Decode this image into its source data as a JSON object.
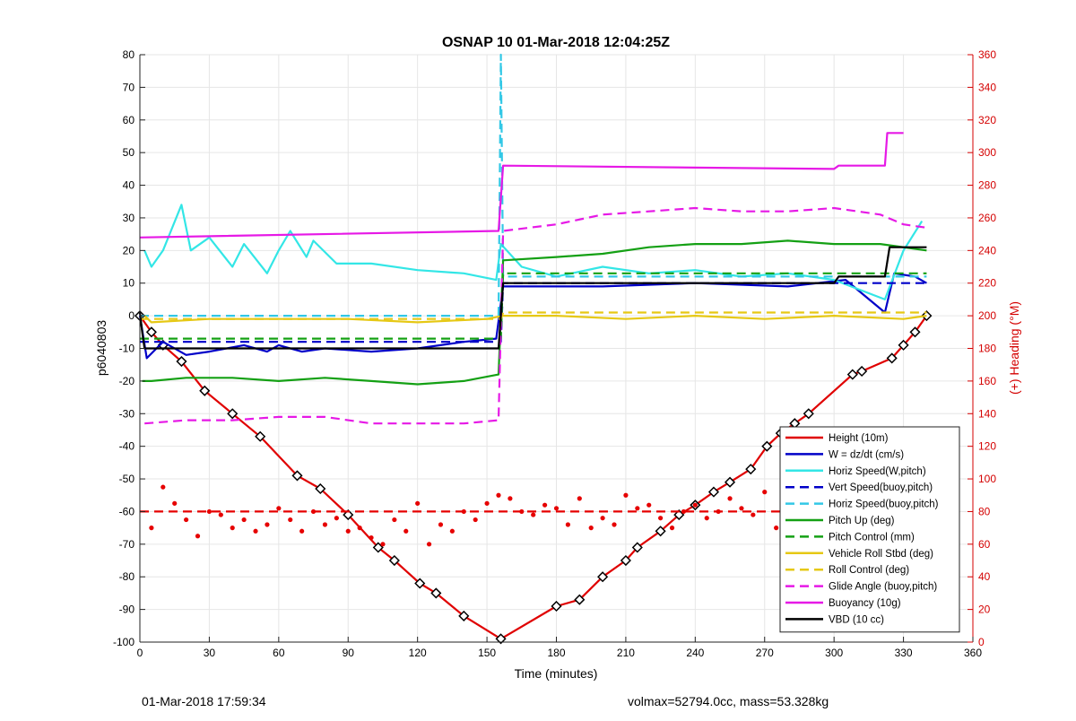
{
  "chart_data": {
    "type": "line",
    "title": "OSNAP 10 01-Mar-2018 12:04:25Z",
    "xlabel": "Time (minutes)",
    "ylabel": "p6040803",
    "y2label": "(+) Heading (°M)",
    "xlim": [
      0,
      360
    ],
    "ylim": [
      -100,
      80
    ],
    "y2lim": [
      0,
      360
    ],
    "xticks": [
      0,
      30,
      60,
      90,
      120,
      150,
      180,
      210,
      240,
      270,
      300,
      330,
      360
    ],
    "yticks": [
      -100,
      -90,
      -80,
      -70,
      -60,
      -50,
      -40,
      -30,
      -20,
      -10,
      0,
      10,
      20,
      30,
      40,
      50,
      60,
      70,
      80
    ],
    "y2ticks": [
      0,
      20,
      40,
      60,
      80,
      100,
      120,
      140,
      160,
      180,
      200,
      220,
      240,
      260,
      280,
      300,
      320,
      340,
      360
    ],
    "grid": true,
    "legend_position": "bottom-right",
    "colors": {
      "right_axis": "#d40000"
    },
    "series": [
      {
        "name": "Height (10m)",
        "color": "#e00000",
        "style": "solid",
        "x": [
          0,
          5,
          10,
          18,
          28,
          40,
          52,
          68,
          78,
          90,
          103,
          110,
          121,
          128,
          140,
          156,
          180,
          190,
          200,
          210,
          215,
          225,
          233,
          240,
          248,
          255,
          264,
          271,
          277,
          283,
          289,
          308,
          312,
          325,
          330,
          335,
          340
        ],
        "y": [
          0,
          -5,
          -9,
          -14,
          -23,
          -30,
          -37,
          -49,
          -53,
          -61,
          -71,
          -75,
          -82,
          -85,
          -92,
          -99,
          -89,
          -87,
          -80,
          -75,
          -71,
          -66,
          -61,
          -58,
          -54,
          -51,
          -47,
          -40,
          -36,
          -33,
          -30,
          -18,
          -17,
          -13,
          -9,
          -5,
          0
        ]
      },
      {
        "name": "W = dz/dt (cm/s)",
        "color": "#0000c8",
        "style": "solid",
        "x": [
          0,
          3,
          10,
          20,
          30,
          45,
          55,
          60,
          70,
          80,
          100,
          120,
          140,
          154,
          157,
          160,
          200,
          240,
          280,
          305,
          322,
          326,
          335,
          340
        ],
        "y": [
          0,
          -13,
          -8,
          -12,
          -11,
          -9,
          -11,
          -9,
          -11,
          -10,
          -11,
          -10,
          -8,
          -7,
          9,
          9,
          9,
          10,
          9,
          11,
          1,
          13,
          12,
          10
        ]
      },
      {
        "name": "Horiz Speed(W,pitch)",
        "color": "#33e6e6",
        "style": "solid",
        "x": [
          2,
          5,
          10,
          18,
          22,
          30,
          40,
          45,
          55,
          60,
          65,
          72,
          75,
          85,
          100,
          120,
          140,
          154,
          156,
          165,
          180,
          200,
          220,
          240,
          260,
          280,
          300,
          322,
          330,
          338
        ],
        "y": [
          20,
          15,
          20,
          34,
          20,
          24,
          15,
          22,
          13,
          20,
          26,
          18,
          23,
          16,
          16,
          14,
          13,
          11,
          22,
          15,
          12,
          15,
          13,
          14,
          12,
          13,
          11,
          5,
          20,
          29
        ]
      },
      {
        "name": "Vert Speed(buoy,pitch)",
        "color": "#0000c8",
        "style": "dashed",
        "x": [
          0,
          156,
          157,
          340
        ],
        "y": [
          -8,
          -8,
          10,
          10
        ]
      },
      {
        "name": "Horiz Speed(buoy,pitch)",
        "color": "#33c8e6",
        "style": "dashed",
        "x": [
          0,
          155,
          156,
          157,
          160,
          340
        ],
        "y": [
          0,
          0,
          80,
          12,
          12,
          12
        ]
      },
      {
        "name": "Pitch Up (deg)",
        "color": "#14a014",
        "style": "solid",
        "x": [
          1,
          5,
          20,
          40,
          60,
          80,
          100,
          120,
          140,
          155,
          157,
          180,
          200,
          220,
          240,
          260,
          280,
          300,
          320,
          340
        ],
        "y": [
          -20,
          -20,
          -19,
          -19,
          -20,
          -19,
          -20,
          -21,
          -20,
          -18,
          17,
          18,
          19,
          21,
          22,
          22,
          23,
          22,
          22,
          20
        ]
      },
      {
        "name": "Pitch Control (mm)",
        "color": "#14a014",
        "style": "dashed",
        "x": [
          0,
          156,
          157,
          340
        ],
        "y": [
          -7,
          -7,
          13,
          13
        ]
      },
      {
        "name": "Vehicle Roll Stbd (deg)",
        "color": "#e6c814",
        "style": "solid",
        "x": [
          2,
          5,
          30,
          60,
          90,
          120,
          150,
          157,
          180,
          210,
          240,
          270,
          300,
          330,
          340
        ],
        "y": [
          0,
          -2,
          -1,
          -1,
          -1,
          -2,
          -1,
          0,
          0,
          -1,
          0,
          -1,
          0,
          -1,
          0
        ]
      },
      {
        "name": "Roll Control (deg)",
        "color": "#e6c814",
        "style": "dashed",
        "x": [
          0,
          156,
          157,
          340
        ],
        "y": [
          -1,
          -1,
          1,
          1
        ]
      },
      {
        "name": "Glide Angle (buoy,pitch)",
        "color": "#e619e6",
        "style": "dashed",
        "x": [
          2,
          20,
          40,
          60,
          80,
          100,
          120,
          140,
          155,
          157,
          180,
          200,
          220,
          240,
          260,
          280,
          300,
          320,
          330,
          340
        ],
        "y": [
          -33,
          -32,
          -32,
          -31,
          -31,
          -33,
          -33,
          -33,
          -32,
          26,
          28,
          31,
          32,
          33,
          32,
          32,
          33,
          31,
          28,
          27
        ]
      },
      {
        "name": "Buoyancy (10g)",
        "color": "#e619e6",
        "style": "solid",
        "x": [
          0,
          155,
          157,
          300,
          302,
          322,
          323,
          330
        ],
        "y": [
          24,
          26,
          46,
          45,
          46,
          46,
          56,
          56
        ]
      },
      {
        "name": "VBD (10 cc)",
        "color": "#000000",
        "style": "solid",
        "x": [
          0,
          1,
          2,
          3,
          155,
          157,
          300,
          302,
          322,
          324,
          340
        ],
        "y": [
          1,
          -5,
          -10,
          -10,
          -10,
          10,
          10,
          12,
          12,
          21,
          21
        ]
      },
      {
        "name": "Heading",
        "axis": "y2",
        "color": "#e60000",
        "style": "markers",
        "x": [
          5,
          10,
          15,
          20,
          25,
          30,
          35,
          40,
          45,
          50,
          55,
          60,
          65,
          70,
          75,
          80,
          85,
          90,
          95,
          100,
          105,
          110,
          115,
          120,
          125,
          130,
          135,
          140,
          145,
          150,
          155,
          160,
          165,
          170,
          175,
          180,
          185,
          190,
          195,
          200,
          205,
          210,
          215,
          220,
          225,
          230,
          235,
          240,
          245,
          250,
          255,
          260,
          265,
          270,
          275,
          280,
          285,
          290,
          295,
          300,
          305,
          310,
          315,
          320,
          325,
          330,
          335
        ],
        "y": [
          70,
          95,
          85,
          75,
          65,
          80,
          78,
          70,
          75,
          68,
          72,
          82,
          75,
          68,
          80,
          72,
          76,
          68,
          70,
          64,
          60,
          75,
          68,
          85,
          60,
          72,
          68,
          80,
          75,
          85,
          90,
          88,
          80,
          78,
          84,
          82,
          72,
          88,
          70,
          76,
          72,
          90,
          82,
          84,
          76,
          70,
          80,
          84,
          76,
          80,
          88,
          82,
          78,
          92,
          70,
          96,
          76,
          100,
          82,
          92,
          86,
          98,
          94,
          88,
          100,
          90,
          94
        ]
      },
      {
        "name": "Heading setpoint",
        "axis": "y2",
        "color": "#e60000",
        "style": "dashed",
        "x": [
          0,
          340
        ],
        "y": [
          80,
          80
        ]
      }
    ]
  },
  "footer": {
    "timestamp": "01-Mar-2018 17:59:34",
    "stats": "volmax=52794.0cc, mass=53.328kg"
  }
}
